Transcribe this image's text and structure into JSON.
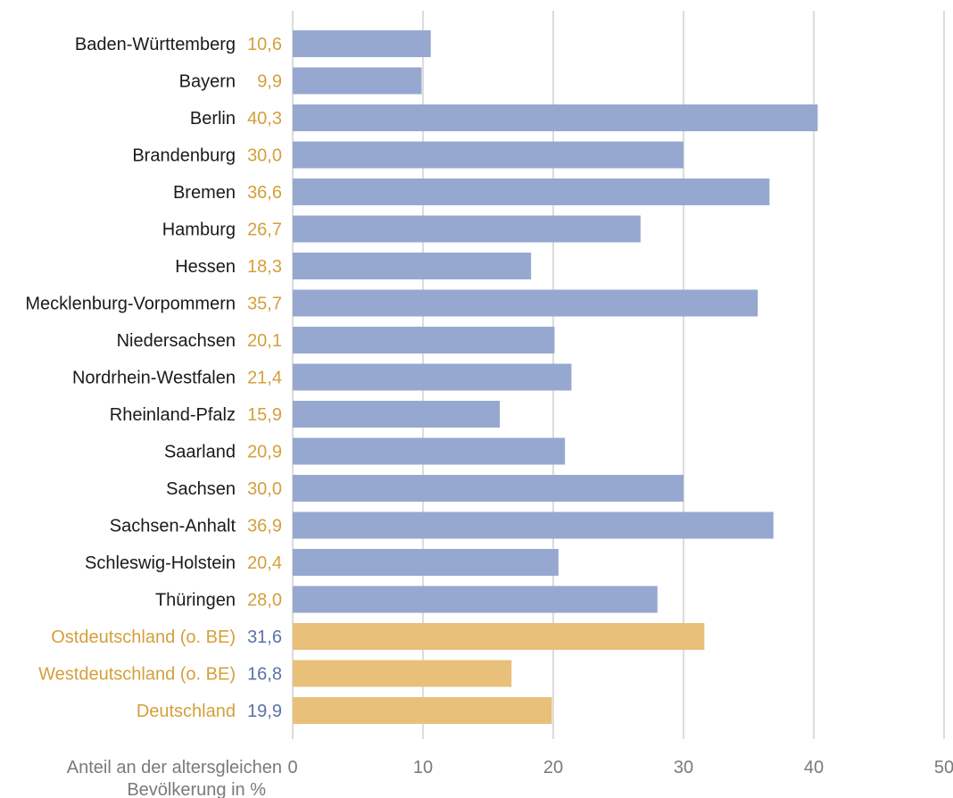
{
  "chart_data": {
    "type": "bar",
    "orientation": "horizontal",
    "categories": [
      "Baden-Württemberg",
      "Bayern",
      "Berlin",
      "Brandenburg",
      "Bremen",
      "Hamburg",
      "Hessen",
      "Mecklenburg-Vorpommern",
      "Niedersachsen",
      "Nordrhein-Westfalen",
      "Rheinland-Pfalz",
      "Saarland",
      "Sachsen",
      "Sachsen-Anhalt",
      "Schleswig-Holstein",
      "Thüringen",
      "Ostdeutschland (o. BE)",
      "Westdeutschland (o. BE)",
      "Deutschland"
    ],
    "values": [
      10.6,
      9.9,
      40.3,
      30.0,
      36.6,
      26.7,
      18.3,
      35.7,
      20.1,
      21.4,
      15.9,
      20.9,
      30.0,
      36.9,
      20.4,
      28.0,
      31.6,
      16.8,
      19.9
    ],
    "value_labels": [
      "10,6",
      "9,9",
      "40,3",
      "30,0",
      "36,6",
      "26,7",
      "18,3",
      "35,7",
      "20,1",
      "21,4",
      "15,9",
      "20,9",
      "30,0",
      "36,9",
      "20,4",
      "28,0",
      "31,6",
      "16,8",
      "19,9"
    ],
    "summary_rows": [
      false,
      false,
      false,
      false,
      false,
      false,
      false,
      false,
      false,
      false,
      false,
      false,
      false,
      false,
      false,
      false,
      true,
      true,
      true
    ],
    "xlabel_lines": [
      "Anteil an der altersgleichen",
      "Bevölkerung in %"
    ],
    "xlim": [
      0,
      50
    ],
    "xticks": [
      0,
      10,
      20,
      30,
      40,
      50
    ],
    "grid": true,
    "colors": {
      "bar": "#96a8d0",
      "summary_bar": "#e8c07a",
      "value_label": "#d4a03a",
      "summary_value_label": "#5b72a8",
      "summary_category_label": "#d4a03a",
      "category_label": "#1a1a1a",
      "axis_text": "#7a7a7a",
      "grid": "#d0d0d0"
    }
  }
}
